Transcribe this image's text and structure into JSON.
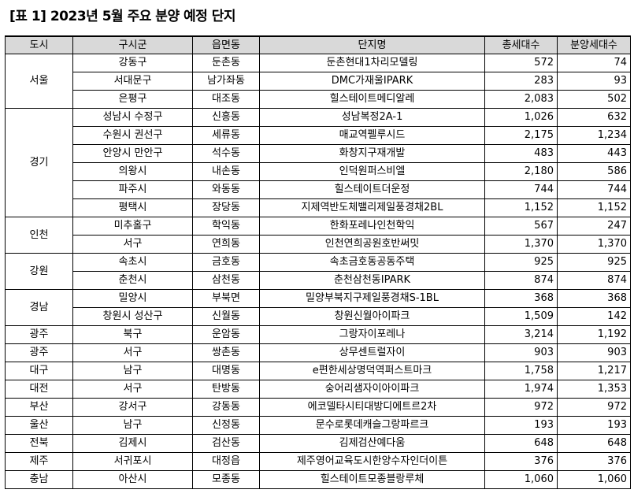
{
  "title": "[표 1] 2023년 5월 주요 분양 예정 단지",
  "headers": [
    "도시",
    "구시군",
    "읍면동",
    "단지명",
    "총세대수",
    "분양세대수"
  ],
  "rows": [
    {
      "city": "서울",
      "district": "강동구",
      "town": "둔촌동",
      "name": "둔촌현대1차리모델링",
      "total": "572",
      "sale": "74"
    },
    {
      "city": "서울",
      "district": "서대문구",
      "town": "남가좌동",
      "name": "DMC가재울IPARK",
      "total": "283",
      "sale": "93"
    },
    {
      "city": "서울",
      "district": "은평구",
      "town": "대조동",
      "name": "힐스테이트메디알레",
      "total": "2,083",
      "sale": "502"
    },
    {
      "city": "경기",
      "district": "성남시 수정구",
      "town": "신흥동",
      "name": "성남복정2A-1",
      "total": "1,026",
      "sale": "632"
    },
    {
      "city": "경기",
      "district": "수원시 권선구",
      "town": "세류동",
      "name": "매교역펠루시드",
      "total": "2,175",
      "sale": "1,234"
    },
    {
      "city": "경기",
      "district": "안양시 만안구",
      "town": "석수동",
      "name": "화창지구재개발",
      "total": "483",
      "sale": "443"
    },
    {
      "city": "경기",
      "district": "의왕시",
      "town": "내손동",
      "name": "인덕원퍼스비엘",
      "total": "2,180",
      "sale": "586"
    },
    {
      "city": "경기",
      "district": "파주시",
      "town": "와동동",
      "name": "힐스테이트더운정",
      "total": "744",
      "sale": "744"
    },
    {
      "city": "경기",
      "district": "평택시",
      "town": "장당동",
      "name": "지제역반도체밸리제일풍경채2BL",
      "total": "1,152",
      "sale": "1,152"
    },
    {
      "city": "인천",
      "district": "미추홀구",
      "town": "학익동",
      "name": "한화포레나인천학익",
      "total": "567",
      "sale": "247"
    },
    {
      "city": "인천",
      "district": "서구",
      "town": "연희동",
      "name": "인천연희공원호반써밋",
      "total": "1,370",
      "sale": "1,370"
    },
    {
      "city": "강원",
      "district": "속초시",
      "town": "금호동",
      "name": "속초금호동공동주택",
      "total": "925",
      "sale": "925"
    },
    {
      "city": "강원",
      "district": "춘천시",
      "town": "삼천동",
      "name": "춘천삼천동IPARK",
      "total": "874",
      "sale": "874"
    },
    {
      "city": "경남",
      "district": "밀양시",
      "town": "부북면",
      "name": "밀양부북지구제일풍경채S-1BL",
      "total": "368",
      "sale": "368"
    },
    {
      "city": "경남",
      "district": "창원시 성산구",
      "town": "신월동",
      "name": "창원신월아이파크",
      "total": "1,509",
      "sale": "142"
    },
    {
      "city": "광주",
      "district": "북구",
      "town": "운암동",
      "name": "그랑자이포레나",
      "total": "3,214",
      "sale": "1,192"
    },
    {
      "city": "광주",
      "district": "서구",
      "town": "쌍촌동",
      "name": "상무센트럴자이",
      "total": "903",
      "sale": "903"
    },
    {
      "city": "대구",
      "district": "남구",
      "town": "대명동",
      "name": "e편한세상명덕역퍼스트마크",
      "total": "1,758",
      "sale": "1,217"
    },
    {
      "city": "대전",
      "district": "서구",
      "town": "탄방동",
      "name": "숭어리샘자이아이파크",
      "total": "1,974",
      "sale": "1,353"
    },
    {
      "city": "부산",
      "district": "강서구",
      "town": "강동동",
      "name": "에코델타시티대방디에트르2차",
      "total": "972",
      "sale": "972"
    },
    {
      "city": "울산",
      "district": "남구",
      "town": "신정동",
      "name": "문수로롯데캐슬그랑파르크",
      "total": "193",
      "sale": "193"
    },
    {
      "city": "전북",
      "district": "김제시",
      "town": "검산동",
      "name": "김제검산예다움",
      "total": "648",
      "sale": "648"
    },
    {
      "city": "제주",
      "district": "서귀포시",
      "town": "대정읍",
      "name": "제주영어교육도시한양수자인더이튼",
      "total": "376",
      "sale": "376"
    },
    {
      "city": "충남",
      "district": "아산시",
      "town": "모종동",
      "name": "힐스테이트모종블랑루체",
      "total": "1,060",
      "sale": "1,060"
    }
  ]
}
